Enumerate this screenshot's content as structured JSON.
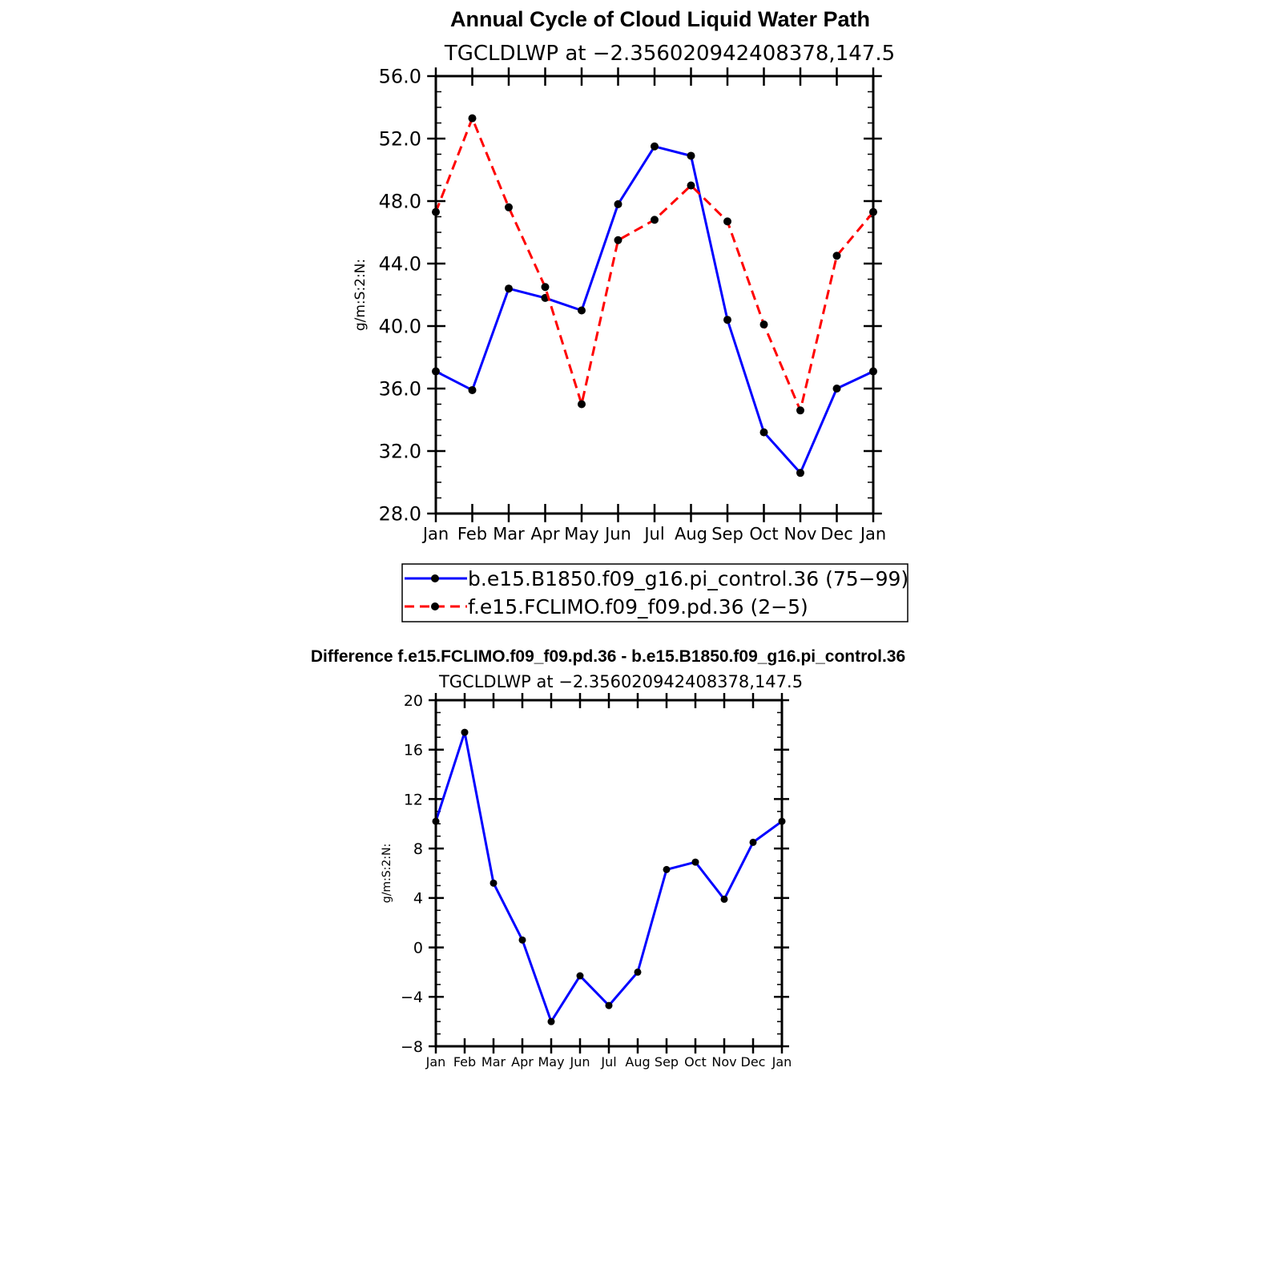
{
  "chart_data": [
    {
      "type": "line",
      "title": "Annual Cycle of Cloud Liquid Water Path",
      "subtitle": "TGCLDLWP at −2.356020942408378,147.5",
      "xlabel": "",
      "ylabel": "g/m:S:2:N:",
      "categories": [
        "Jan",
        "Feb",
        "Mar",
        "Apr",
        "May",
        "Jun",
        "Jul",
        "Aug",
        "Sep",
        "Oct",
        "Nov",
        "Dec",
        "Jan"
      ],
      "ylim": [
        28,
        56
      ],
      "yticks": [
        "56.0",
        "52.0",
        "48.0",
        "44.0",
        "40.0",
        "36.0",
        "32.0",
        "28.0"
      ],
      "series": [
        {
          "name": "b.e15.B1850.f09_g16.pi_control.36 (75−99)",
          "color": "#0000ff",
          "dash": "solid",
          "values": [
            37.1,
            35.9,
            42.4,
            41.8,
            41.0,
            47.8,
            51.5,
            50.9,
            40.4,
            33.2,
            30.6,
            36.0,
            37.1
          ]
        },
        {
          "name": "f.e15.FCLIMO.f09_f09.pd.36 (2−5)",
          "color": "#ff0000",
          "dash": "dashed",
          "values": [
            47.3,
            53.3,
            47.6,
            42.5,
            35.0,
            45.5,
            46.8,
            49.0,
            46.7,
            40.1,
            34.6,
            44.5,
            47.3
          ]
        }
      ],
      "legend": "bottom",
      "grid": false
    },
    {
      "type": "line",
      "title": "Difference f.e15.FCLIMO.f09_f09.pd.36 - b.e15.B1850.f09_g16.pi_control.36",
      "subtitle": "TGCLDLWP at −2.356020942408378,147.5",
      "xlabel": "",
      "ylabel": "g/m:S:2:N:",
      "categories": [
        "Jan",
        "Feb",
        "Mar",
        "Apr",
        "May",
        "Jun",
        "Jul",
        "Aug",
        "Sep",
        "Oct",
        "Nov",
        "Dec",
        "Jan"
      ],
      "ylim": [
        -8,
        20
      ],
      "yticks": [
        "20",
        "16",
        "12",
        "8",
        "4",
        "0",
        "−4",
        "−8"
      ],
      "series": [
        {
          "color": "#0000ff",
          "dash": "solid",
          "values": [
            10.2,
            17.4,
            5.2,
            0.6,
            -6.0,
            -2.3,
            -4.7,
            -2.0,
            6.3,
            6.9,
            3.9,
            8.5,
            10.2
          ]
        }
      ],
      "grid": false
    }
  ]
}
